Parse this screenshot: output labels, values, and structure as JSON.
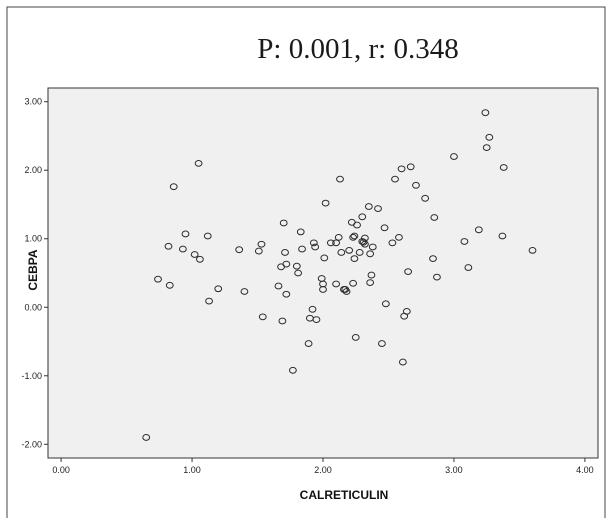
{
  "chart_data": {
    "type": "scatter",
    "title": "P: 0.001, r: 0.348",
    "xlabel": "CALRETICULIN",
    "ylabel": "CEBPA",
    "xlim": [
      -0.1,
      4.1
    ],
    "ylim": [
      -2.2,
      3.2
    ],
    "xticks": [
      "0.00",
      "1.00",
      "2.00",
      "3.00",
      "4.00"
    ],
    "yticks": [
      "-2.00",
      "-1.00",
      "0.00",
      "1.00",
      "2.00",
      "3.00"
    ],
    "grid": false,
    "legend": "none",
    "colors": {
      "plot_background": "#f0f0f0",
      "marker_stroke": "#2b2b2b",
      "frame": "#333333"
    },
    "series": [
      {
        "points": [
          [
            0.65,
            -1.9
          ],
          [
            0.74,
            0.41
          ],
          [
            0.82,
            0.89
          ],
          [
            0.83,
            0.32
          ],
          [
            0.86,
            1.76
          ],
          [
            0.93,
            0.85
          ],
          [
            0.95,
            1.07
          ],
          [
            1.02,
            0.77
          ],
          [
            1.05,
            2.1
          ],
          [
            1.06,
            0.7
          ],
          [
            1.12,
            1.04
          ],
          [
            1.13,
            0.09
          ],
          [
            1.2,
            0.27
          ],
          [
            1.36,
            0.84
          ],
          [
            1.4,
            0.23
          ],
          [
            1.51,
            0.82
          ],
          [
            1.53,
            0.92
          ],
          [
            1.54,
            -0.14
          ],
          [
            1.66,
            0.31
          ],
          [
            1.68,
            0.59
          ],
          [
            1.69,
            -0.2
          ],
          [
            1.7,
            1.23
          ],
          [
            1.71,
            0.8
          ],
          [
            1.72,
            0.19
          ],
          [
            1.72,
            0.63
          ],
          [
            1.77,
            -0.92
          ],
          [
            1.8,
            0.6
          ],
          [
            1.81,
            0.5
          ],
          [
            1.83,
            1.1
          ],
          [
            1.84,
            0.85
          ],
          [
            1.89,
            -0.53
          ],
          [
            1.9,
            -0.16
          ],
          [
            1.92,
            -0.03
          ],
          [
            1.93,
            0.94
          ],
          [
            1.94,
            0.88
          ],
          [
            1.95,
            -0.18
          ],
          [
            1.99,
            0.42
          ],
          [
            2.0,
            0.34
          ],
          [
            2.0,
            0.26
          ],
          [
            2.01,
            0.72
          ],
          [
            2.02,
            1.52
          ],
          [
            2.06,
            0.94
          ],
          [
            2.1,
            0.94
          ],
          [
            2.1,
            0.34
          ],
          [
            2.12,
            1.02
          ],
          [
            2.13,
            1.87
          ],
          [
            2.14,
            0.8
          ],
          [
            2.16,
            0.26
          ],
          [
            2.17,
            0.26
          ],
          [
            2.18,
            0.23
          ],
          [
            2.2,
            0.83
          ],
          [
            2.22,
            1.24
          ],
          [
            2.23,
            0.35
          ],
          [
            2.23,
            1.02
          ],
          [
            2.24,
            1.04
          ],
          [
            2.24,
            0.71
          ],
          [
            2.25,
            -0.44
          ],
          [
            2.26,
            1.2
          ],
          [
            2.28,
            0.8
          ],
          [
            2.3,
            1.32
          ],
          [
            2.3,
            0.96
          ],
          [
            2.31,
            0.95
          ],
          [
            2.32,
            1.01
          ],
          [
            2.32,
            0.92
          ],
          [
            2.35,
            1.47
          ],
          [
            2.36,
            0.78
          ],
          [
            2.36,
            0.36
          ],
          [
            2.37,
            0.47
          ],
          [
            2.38,
            0.88
          ],
          [
            2.42,
            1.44
          ],
          [
            2.45,
            -0.53
          ],
          [
            2.47,
            1.16
          ],
          [
            2.48,
            0.05
          ],
          [
            2.53,
            0.94
          ],
          [
            2.55,
            1.87
          ],
          [
            2.58,
            1.02
          ],
          [
            2.6,
            2.02
          ],
          [
            2.61,
            -0.8
          ],
          [
            2.62,
            -0.13
          ],
          [
            2.64,
            -0.06
          ],
          [
            2.65,
            0.52
          ],
          [
            2.67,
            2.05
          ],
          [
            2.71,
            1.78
          ],
          [
            2.78,
            1.59
          ],
          [
            2.84,
            0.71
          ],
          [
            2.85,
            1.31
          ],
          [
            2.87,
            0.44
          ],
          [
            3.0,
            2.2
          ],
          [
            3.08,
            0.96
          ],
          [
            3.11,
            0.58
          ],
          [
            3.19,
            1.13
          ],
          [
            3.24,
            2.84
          ],
          [
            3.25,
            2.33
          ],
          [
            3.27,
            2.48
          ],
          [
            3.37,
            1.04
          ],
          [
            3.38,
            2.04
          ],
          [
            3.6,
            0.83
          ]
        ]
      }
    ]
  }
}
